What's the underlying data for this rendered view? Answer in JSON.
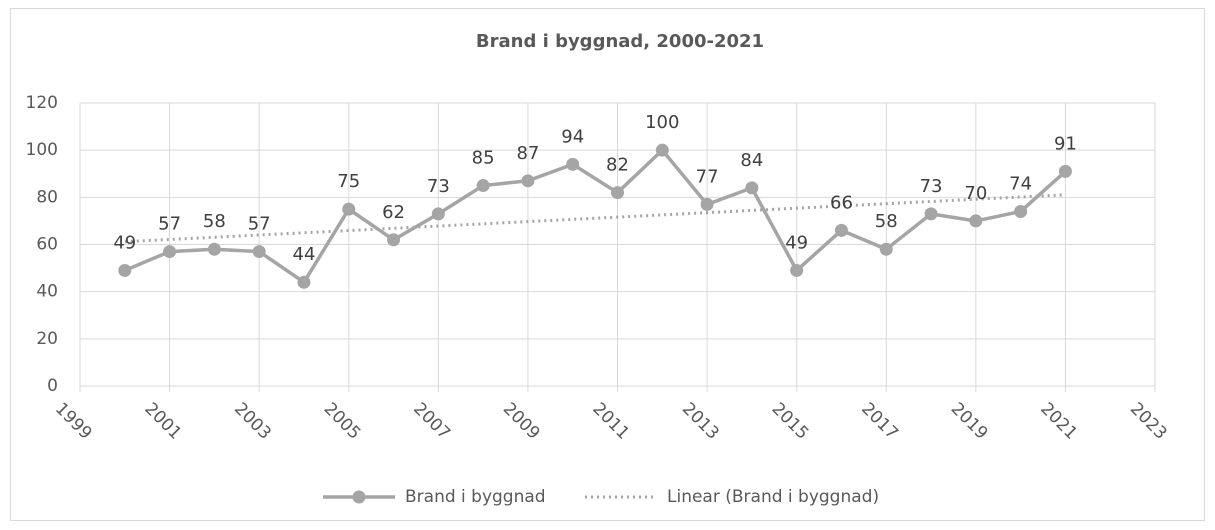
{
  "chart_data": {
    "type": "line",
    "title": "Brand i byggnad, 2000-2021",
    "x": [
      2000,
      2001,
      2002,
      2003,
      2004,
      2005,
      2006,
      2007,
      2008,
      2009,
      2010,
      2011,
      2012,
      2013,
      2014,
      2015,
      2016,
      2017,
      2018,
      2019,
      2020,
      2021
    ],
    "series": [
      {
        "name": "Brand i byggnad",
        "color": "#a5a5a5",
        "values": [
          49,
          57,
          58,
          57,
          44,
          75,
          62,
          73,
          85,
          87,
          94,
          82,
          100,
          77,
          84,
          49,
          66,
          58,
          73,
          70,
          74,
          91
        ]
      }
    ],
    "trendline": {
      "name": "Linear (Brand i byggnad)",
      "color": "#a5a5a5"
    },
    "xlim": [
      1999,
      2023
    ],
    "xticks": [
      1999,
      2001,
      2003,
      2005,
      2007,
      2009,
      2011,
      2013,
      2015,
      2017,
      2019,
      2021,
      2023
    ],
    "ylim": [
      0,
      120
    ],
    "yticks": [
      0,
      20,
      40,
      60,
      80,
      100,
      120
    ],
    "grid": true,
    "legend": "bottom"
  }
}
